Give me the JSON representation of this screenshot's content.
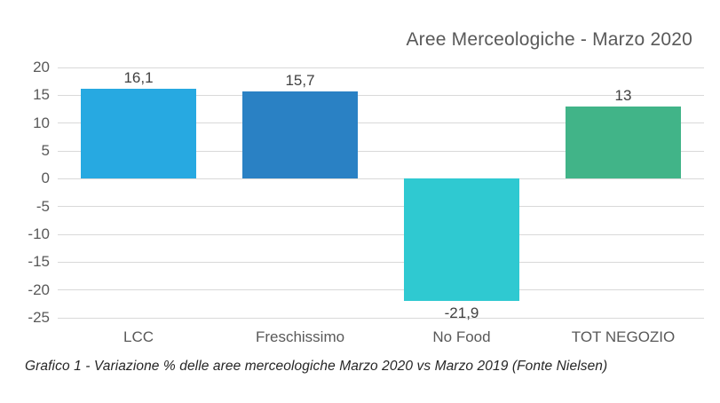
{
  "title": "Aree Merceologiche - Marzo 2020",
  "caption": "Grafico 1 - Variazione % delle aree merceologiche Marzo 2020 vs Marzo 2019 (Fonte Nielsen)",
  "colors": {
    "title_text": "#595959",
    "axis_text": "#595959",
    "value_label_text": "#404040",
    "gridline": "#d9d9d9",
    "background": "#ffffff",
    "bar_lcc": "#27A9E1",
    "bar_freschissimo": "#2A81C4",
    "bar_no_food": "#2FC9D1",
    "bar_tot_negozio": "#41B488"
  },
  "chart_data": {
    "type": "bar",
    "title": "Aree Merceologiche - Marzo 2020",
    "categories": [
      "LCC",
      "Freschissimo",
      "No Food",
      "TOT NEGOZIO"
    ],
    "values": [
      16.1,
      15.7,
      -21.9,
      13
    ],
    "value_labels": [
      "16,1",
      "15,7",
      "-21,9",
      "13"
    ],
    "bar_colors": [
      "#27A9E1",
      "#2A81C4",
      "#2FC9D1",
      "#41B488"
    ],
    "xlabel": "",
    "ylabel": "",
    "ylim": [
      -25,
      20
    ],
    "yticks": [
      20,
      15,
      10,
      5,
      0,
      -5,
      -10,
      -15,
      -20,
      -25
    ],
    "grid": true,
    "legend": false,
    "decimal_separator": ","
  }
}
